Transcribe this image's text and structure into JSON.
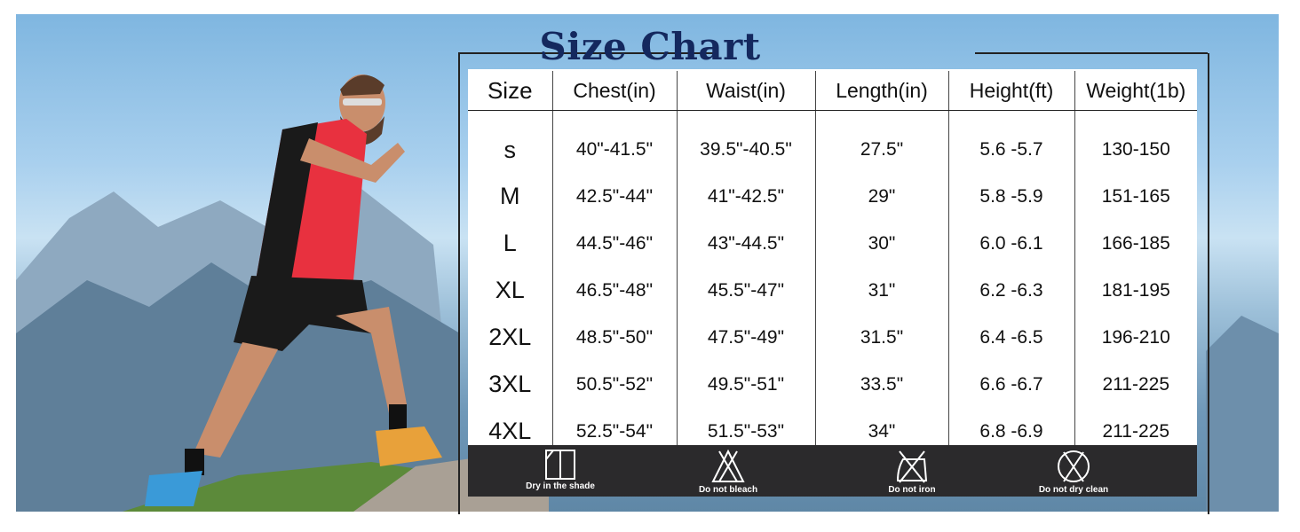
{
  "title": "Size Chart",
  "table": {
    "headers": [
      "Size",
      "Chest(in)",
      "Waist(in)",
      "Length(in)",
      "Height(ft)",
      "Weight(1b)"
    ],
    "rows": [
      [
        "s",
        "40\"-41.5\"",
        "39.5\"-40.5\"",
        "27.5\"",
        "5.6 -5.7",
        "130-150"
      ],
      [
        "M",
        "42.5\"-44\"",
        "41\"-42.5\"",
        "29\"",
        "5.8 -5.9",
        "151-165"
      ],
      [
        "L",
        "44.5\"-46\"",
        "43\"-44.5\"",
        "30\"",
        "6.0 -6.1",
        "166-185"
      ],
      [
        "XL",
        "46.5\"-48\"",
        "45.5\"-47\"",
        "31\"",
        "6.2 -6.3",
        "181-195"
      ],
      [
        "2XL",
        "48.5\"-50\"",
        "47.5\"-49\"",
        "31.5\"",
        "6.4 -6.5",
        "196-210"
      ],
      [
        "3XL",
        "50.5\"-52\"",
        "49.5\"-51\"",
        "33.5\"",
        "6.6 -6.7",
        "211-225"
      ],
      [
        "4XL",
        "52.5\"-54\"",
        "51.5\"-53\"",
        "34\"",
        "6.8 -6.9",
        "211-225"
      ]
    ]
  },
  "care": [
    {
      "icon": "dry-in-shade-icon",
      "label": "Dry in the shade"
    },
    {
      "icon": "do-not-bleach-icon",
      "label": "Do not bleach"
    },
    {
      "icon": "do-not-iron-icon",
      "label": "Do not iron"
    },
    {
      "icon": "do-not-dry-clean-icon",
      "label": "Do not dry clean"
    }
  ],
  "colors": {
    "title": "#14285e",
    "care_bar": "#2b2a2c",
    "shirt": "#e8313f"
  }
}
